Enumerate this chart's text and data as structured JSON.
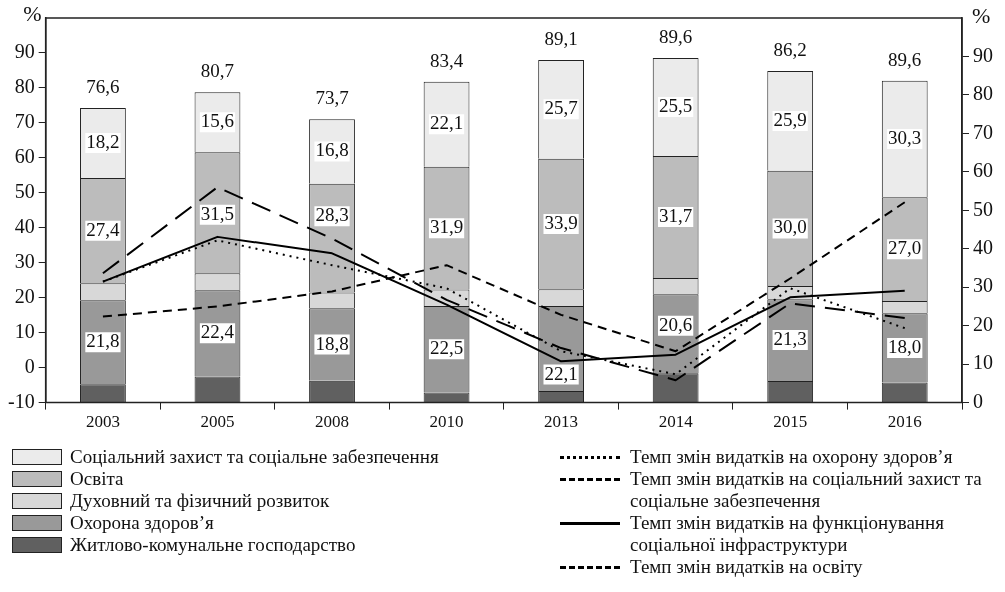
{
  "chart_data": {
    "type": "bar",
    "stacked": true,
    "categories": [
      "2003",
      "2005",
      "2008",
      "2010",
      "2013",
      "2014",
      "2015",
      "2016"
    ],
    "series": [
      {
        "name": "Житлово-комунальне господарство",
        "axis": "y2",
        "color": "#606060",
        "values": [
          4.8,
          6.8,
          5.7,
          2.6,
          3.0,
          7.6,
          5.6,
          5.2
        ]
      },
      {
        "name": "Охорона здоров’я",
        "axis": "y2",
        "color": "#999999",
        "values": [
          21.8,
          22.4,
          18.8,
          22.5,
          22.1,
          20.6,
          21.3,
          18.0
        ],
        "value_labels": [
          "21,8",
          "22,4",
          "18,8",
          "22,5",
          "22,1",
          "20,6",
          "21,3",
          "18,0"
        ]
      },
      {
        "name": "Духовний та фізичний розвиток",
        "axis": "y2",
        "color": "#d8d8d8",
        "values": [
          4.4,
          4.4,
          4.1,
          4.3,
          4.4,
          4.2,
          3.4,
          3.2
        ]
      },
      {
        "name": "Освіта",
        "axis": "y2",
        "color": "#bcbcbc",
        "values": [
          27.4,
          31.5,
          28.3,
          31.9,
          33.9,
          31.7,
          30.0,
          27.0
        ],
        "value_labels": [
          "27,4",
          "31,5",
          "28,3",
          "31,9",
          "33,9",
          "31,7",
          "30,0",
          "27,0"
        ]
      },
      {
        "name": "Соціальний захист та соціальне забезпечення",
        "axis": "y2",
        "color": "#ebebeb",
        "values": [
          18.2,
          15.6,
          16.8,
          22.1,
          25.7,
          25.5,
          25.9,
          30.3
        ],
        "value_labels": [
          "18,2",
          "15,6",
          "16,8",
          "22,1",
          "25,7",
          "25,5",
          "25,9",
          "30,3"
        ]
      },
      {
        "name": "Темп змін видатків на охорону здоров’я",
        "type": "line",
        "axis": "y",
        "color": "#000000",
        "line_style": "dotted",
        "values": [
          24.6,
          36.4,
          29.3,
          22.7,
          4.7,
          -1.9,
          22.7,
          11.3
        ]
      },
      {
        "name": "Темп змін видатків на соціальний захист та соціальне забезпечення",
        "type": "line",
        "axis": "y",
        "color": "#000000",
        "line_style": "dashed",
        "values": [
          14.6,
          17.5,
          21.8,
          29.3,
          15.1,
          4.7,
          25.5,
          47.3
        ]
      },
      {
        "name": "Темп змін видатків на функціонування соціальної інфраструктури",
        "type": "line",
        "axis": "y",
        "color": "#000000",
        "line_style": "solid",
        "values": [
          24.6,
          37.4,
          32.7,
          18.0,
          1.8,
          3.7,
          20.1,
          22.0
        ]
      },
      {
        "name": "Темп змін видатків на освіту",
        "type": "line",
        "axis": "y",
        "color": "#000000",
        "line_style": "longdash",
        "values": [
          27.0,
          51.6,
          36.9,
          19.4,
          5.6,
          -3.6,
          18.4,
          14.2
        ]
      }
    ],
    "totals": [
      "76,6",
      "80,7",
      "73,7",
      "83,4",
      "89,1",
      "89,6",
      "86,2",
      "89,6"
    ],
    "ylabel": "%",
    "y2label": "%",
    "ylim": [
      -10,
      100
    ],
    "yticks": [
      -10,
      0,
      10,
      20,
      30,
      40,
      50,
      60,
      70,
      80,
      90
    ],
    "y2lim": [
      0,
      100
    ],
    "y2ticks": [
      0,
      10,
      20,
      30,
      40,
      50,
      60,
      70,
      80,
      90
    ],
    "marker": "none",
    "grid": false,
    "legend": "bottom"
  }
}
